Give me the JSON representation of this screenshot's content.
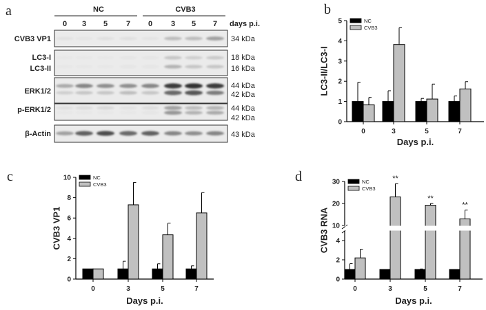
{
  "colors": {
    "nc": "#000000",
    "cvb3": "#c0c0c0",
    "blot_bg": "#ebebeb",
    "band": "#333333"
  },
  "blot": {
    "panel_label": "a",
    "groups": [
      "NC",
      "CVB3"
    ],
    "lanes": [
      "0",
      "3",
      "5",
      "7",
      "0",
      "3",
      "5",
      "7"
    ],
    "lane_unit": "days p.i.",
    "rows": [
      {
        "labels": [
          "CVB3 VP1"
        ],
        "sizes": [
          "34 kDa"
        ],
        "bands": [
          [
            0.05,
            0.03,
            0.06,
            0.06,
            0.04,
            0.25,
            0.25,
            0.4
          ]
        ]
      },
      {
        "labels": [
          "LC3-I",
          "LC3-II"
        ],
        "sizes": [
          "18 kDa",
          "16 kDa"
        ],
        "bands": [
          [
            0.02,
            0.02,
            0.02,
            0.03,
            0.03,
            0.2,
            0.15,
            0.18
          ],
          [
            0.02,
            0.02,
            0.02,
            0.03,
            0.03,
            0.3,
            0.2,
            0.2
          ]
        ]
      },
      {
        "labels": [
          "ERK1/2"
        ],
        "sizes": [
          "44 kDa",
          "42 kDa"
        ],
        "bands": [
          [
            0.35,
            0.55,
            0.5,
            0.5,
            0.55,
            0.95,
            1.0,
            0.95
          ],
          [
            0.15,
            0.2,
            0.2,
            0.25,
            0.2,
            0.7,
            0.8,
            0.6
          ]
        ]
      },
      {
        "labels": [
          "p-ERK1/2"
        ],
        "sizes": [
          "44 kDa",
          "42 kDa"
        ],
        "bands": [
          [
            0.06,
            0.08,
            0.1,
            0.05,
            0.08,
            0.4,
            0.25,
            0.3
          ],
          [
            0.02,
            0.02,
            0.02,
            0.02,
            0.03,
            0.45,
            0.3,
            0.35
          ]
        ]
      },
      {
        "labels": [
          "β-Actin"
        ],
        "sizes": [
          "43 kDa"
        ],
        "bands": [
          [
            0.4,
            0.75,
            0.85,
            0.7,
            0.75,
            0.55,
            0.5,
            0.55
          ]
        ]
      }
    ]
  },
  "chart_data": [
    {
      "panel_label": "b",
      "type": "bar",
      "categories": [
        "0",
        "3",
        "5",
        "7"
      ],
      "xlabel": "Days p.i.",
      "ylabel": "LC3-II/LC3-I",
      "ylim": [
        0,
        5
      ],
      "yticks": [
        "0",
        "1",
        "2",
        "3",
        "4",
        "5"
      ],
      "grid": false,
      "legend": "top-left",
      "series": [
        {
          "name": "NC",
          "values": [
            1,
            1,
            1,
            1
          ],
          "error": [
            0.95,
            0.53,
            0.15,
            0.27
          ]
        },
        {
          "name": "CVB3",
          "values": [
            0.83,
            3.82,
            1.12,
            1.62
          ],
          "error": [
            0.37,
            0.83,
            0.74,
            0.36
          ]
        }
      ]
    },
    {
      "panel_label": "c",
      "type": "bar",
      "categories": [
        "0",
        "3",
        "5",
        "7"
      ],
      "xlabel": "Days p.i.",
      "ylabel": "CVB3 VP1",
      "ylim": [
        0,
        10
      ],
      "yticks": [
        "0",
        "2",
        "4",
        "6",
        "8",
        "10"
      ],
      "grid": false,
      "legend": "top-left",
      "series": [
        {
          "name": "NC",
          "values": [
            1,
            1,
            1,
            1
          ],
          "error": [
            0,
            0.75,
            0.5,
            0.3
          ]
        },
        {
          "name": "CVB3",
          "values": [
            1,
            7.3,
            4.35,
            6.5
          ],
          "error": [
            0,
            2.2,
            1.15,
            2.0
          ]
        }
      ]
    },
    {
      "panel_label": "d",
      "type": "bar",
      "categories": [
        "0",
        "3",
        "5",
        "7"
      ],
      "xlabel": "Days p.i.",
      "ylabel": "CVB3 RNA",
      "ylim": [
        0,
        30
      ],
      "axis_break": [
        5,
        10
      ],
      "yticks": [
        "0",
        "2",
        "4",
        "10",
        "20",
        "30"
      ],
      "grid": false,
      "legend": "top-left",
      "annotations": [
        "",
        "**",
        "**",
        "**"
      ],
      "series": [
        {
          "name": "NC",
          "values": [
            1,
            1,
            1,
            1
          ],
          "error": [
            0.6,
            0,
            0.05,
            0
          ]
        },
        {
          "name": "CVB3",
          "values": [
            2.2,
            23,
            19.2,
            13
          ],
          "error": [
            0.9,
            6,
            0.8,
            4
          ]
        }
      ]
    }
  ]
}
